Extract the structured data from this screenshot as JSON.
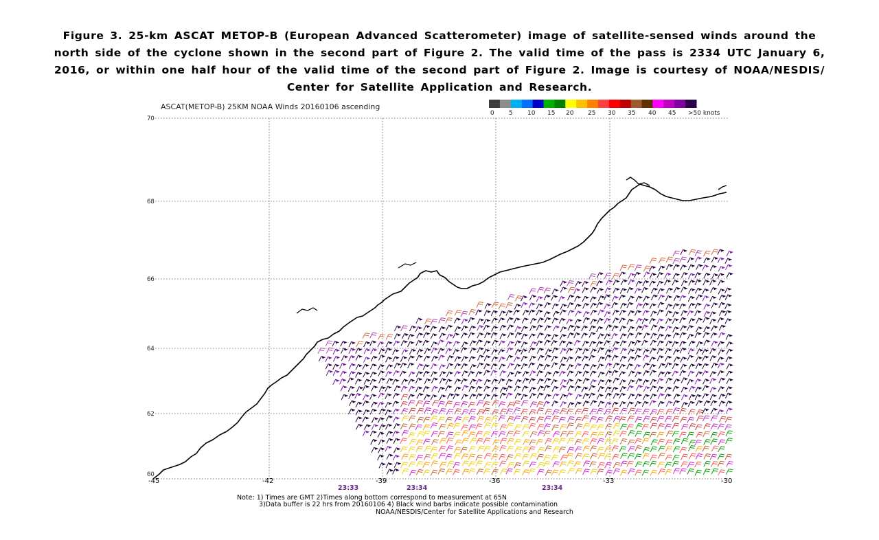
{
  "caption": {
    "line1": "Figure 3. 25-km ASCAT METOP-B (European Advanced Scatterometer) image of satellite-sensed winds around the",
    "line2": "north side of the cyclone shown in the second part of Figure 2. The valid time of the pass is 2334 UTC January 6,",
    "line3": "2016, or within one half hour of the valid time of the second part of Figure 2. Image is courtesy of NOAA/NESDIS/",
    "line4": "Center for Satellite Application and Research."
  },
  "map": {
    "title": "ASCAT(METOP-B) 25KM NOAA Winds 20160106 ascending",
    "lat_ticks": [
      "70",
      "68",
      "66",
      "64",
      "62",
      "60"
    ],
    "lon_ticks": [
      "-45",
      "-42",
      "-39",
      "-36",
      "-33",
      "-30"
    ],
    "pass_times": [
      "23:33",
      "23:34",
      "23:34"
    ],
    "colorbar": {
      "labels": [
        "0",
        "5",
        "10",
        "15",
        "20",
        "25",
        "30",
        "35",
        "40",
        "45",
        ">50 knots"
      ],
      "colors": [
        "#3c3c3c",
        "#8c8c8c",
        "#00b0f0",
        "#0070ff",
        "#0000c8",
        "#00b000",
        "#008000",
        "#ffff00",
        "#ffc000",
        "#ff8000",
        "#ff4040",
        "#ff0000",
        "#c00000",
        "#a05a2c",
        "#603000",
        "#ff00ff",
        "#c000c0",
        "#8000a0",
        "#2a004a"
      ]
    },
    "notes": {
      "line1": "Note: 1) Times are GMT 2)Times along bottom correspond to measurement at 65N",
      "line2": "3)Data buffer is 22 hrs from 20160106 4) Black wind barbs indicate possible contamination",
      "line3": "NOAA/NESDIS/Center for Satellite Applications and Research"
    }
  }
}
